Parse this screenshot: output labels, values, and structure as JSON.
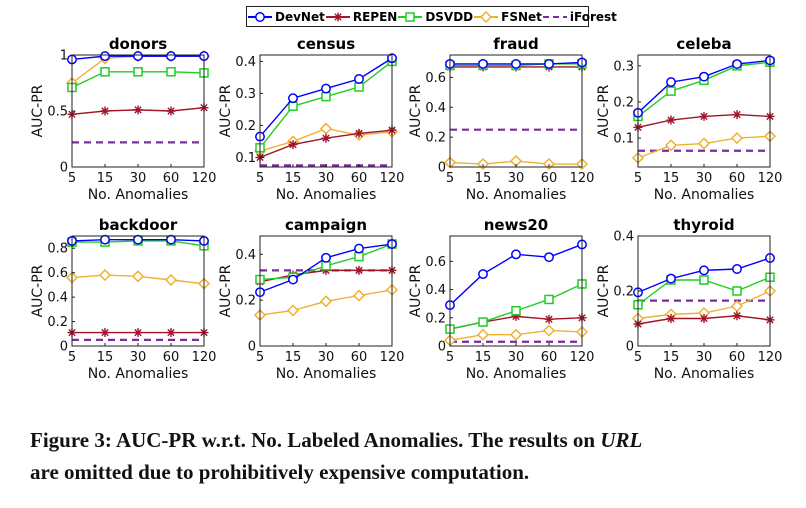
{
  "legend": [
    {
      "name": "DevNet",
      "color": "#0000ff",
      "marker": "circle",
      "dash": false
    },
    {
      "name": "REPEN",
      "color": "#a0152a",
      "marker": "star",
      "dash": false
    },
    {
      "name": "DSVDD",
      "color": "#22cc22",
      "marker": "square",
      "dash": false
    },
    {
      "name": "FSNet",
      "color": "#f0b030",
      "marker": "diamond",
      "dash": false
    },
    {
      "name": "iForest",
      "color": "#7b2aa0",
      "marker": "none",
      "dash": true
    }
  ],
  "caption": {
    "main": "Figure 3: AUC-PR w.r.t. No. Labeled Anomalies. The results on ",
    "italic": "URL",
    "line2": "are omitted due to prohibitively expensive computation."
  },
  "chart_data": [
    {
      "type": "line",
      "title": "donors",
      "xlabel": "No. Anomalies",
      "ylabel": "AUC-PR",
      "categories": [
        "5",
        "15",
        "30",
        "60",
        "120"
      ],
      "ylim": [
        0,
        1
      ],
      "yticks": [
        "0",
        "0.5",
        "1"
      ],
      "ytick_values": [
        0,
        0.5,
        1
      ],
      "series": [
        {
          "name": "DevNet",
          "values": [
            0.96,
            0.99,
            0.99,
            0.99,
            0.99
          ]
        },
        {
          "name": "REPEN",
          "values": [
            0.47,
            0.5,
            0.51,
            0.5,
            0.53
          ]
        },
        {
          "name": "DSVDD",
          "values": [
            0.71,
            0.85,
            0.85,
            0.85,
            0.84
          ]
        },
        {
          "name": "FSNet",
          "values": [
            0.75,
            0.97,
            0.99,
            0.99,
            0.99
          ]
        },
        {
          "name": "iForest",
          "values": [
            0.22,
            0.22,
            0.22,
            0.22,
            0.22
          ]
        }
      ]
    },
    {
      "type": "line",
      "title": "census",
      "xlabel": "No. Anomalies",
      "ylabel": "AUC-PR",
      "categories": [
        "5",
        "15",
        "30",
        "60",
        "120"
      ],
      "ylim": [
        0.07,
        0.42
      ],
      "yticks": [
        "0.1",
        "0.2",
        "0.3",
        "0.4"
      ],
      "ytick_values": [
        0.1,
        0.2,
        0.3,
        0.4
      ],
      "series": [
        {
          "name": "DevNet",
          "values": [
            0.165,
            0.285,
            0.315,
            0.345,
            0.41
          ]
        },
        {
          "name": "REPEN",
          "values": [
            0.1,
            0.14,
            0.16,
            0.175,
            0.185
          ]
        },
        {
          "name": "DSVDD",
          "values": [
            0.13,
            0.26,
            0.29,
            0.32,
            0.4
          ]
        },
        {
          "name": "FSNet",
          "values": [
            0.12,
            0.15,
            0.19,
            0.17,
            0.18
          ]
        },
        {
          "name": "iForest",
          "values": [
            0.075,
            0.075,
            0.075,
            0.075,
            0.075
          ]
        }
      ]
    },
    {
      "type": "line",
      "title": "fraud",
      "xlabel": "No. Anomalies",
      "ylabel": "AUC-PR",
      "categories": [
        "5",
        "15",
        "30",
        "60",
        "120"
      ],
      "ylim": [
        0,
        0.75
      ],
      "yticks": [
        "0",
        "0.2",
        "0.4",
        "0.6"
      ],
      "ytick_values": [
        0,
        0.2,
        0.4,
        0.6
      ],
      "series": [
        {
          "name": "DevNet",
          "values": [
            0.69,
            0.69,
            0.69,
            0.69,
            0.7
          ]
        },
        {
          "name": "REPEN",
          "values": [
            0.67,
            0.67,
            0.67,
            0.67,
            0.67
          ]
        },
        {
          "name": "DSVDD",
          "values": [
            0.68,
            0.68,
            0.68,
            0.69,
            0.69
          ]
        },
        {
          "name": "FSNet",
          "values": [
            0.03,
            0.02,
            0.04,
            0.02,
            0.02
          ]
        },
        {
          "name": "iForest",
          "values": [
            0.25,
            0.25,
            0.25,
            0.25,
            0.25
          ]
        }
      ]
    },
    {
      "type": "line",
      "title": "celeba",
      "xlabel": "No. Anomalies",
      "ylabel": "AUC-PR",
      "categories": [
        "5",
        "15",
        "30",
        "60",
        "120"
      ],
      "ylim": [
        0.02,
        0.33
      ],
      "yticks": [
        "0.1",
        "0.2",
        "0.3"
      ],
      "ytick_values": [
        0.1,
        0.2,
        0.3
      ],
      "series": [
        {
          "name": "DevNet",
          "values": [
            0.17,
            0.255,
            0.27,
            0.305,
            0.315
          ]
        },
        {
          "name": "REPEN",
          "values": [
            0.13,
            0.15,
            0.16,
            0.165,
            0.16
          ]
        },
        {
          "name": "DSVDD",
          "values": [
            0.16,
            0.23,
            0.26,
            0.3,
            0.31
          ]
        },
        {
          "name": "FSNet",
          "values": [
            0.045,
            0.08,
            0.085,
            0.1,
            0.105
          ]
        },
        {
          "name": "iForest",
          "values": [
            0.065,
            0.065,
            0.065,
            0.065,
            0.065
          ]
        }
      ]
    },
    {
      "type": "line",
      "title": "backdoor",
      "xlabel": "No. Anomalies",
      "ylabel": "AUC-PR",
      "categories": [
        "5",
        "15",
        "30",
        "60",
        "120"
      ],
      "ylim": [
        0,
        0.9
      ],
      "yticks": [
        "0",
        "0.2",
        "0.4",
        "0.6",
        "0.8"
      ],
      "ytick_values": [
        0,
        0.2,
        0.4,
        0.6,
        0.8
      ],
      "series": [
        {
          "name": "DevNet",
          "values": [
            0.86,
            0.87,
            0.87,
            0.87,
            0.86
          ]
        },
        {
          "name": "REPEN",
          "values": [
            0.11,
            0.11,
            0.11,
            0.11,
            0.11
          ]
        },
        {
          "name": "DSVDD",
          "values": [
            0.85,
            0.85,
            0.86,
            0.86,
            0.82
          ]
        },
        {
          "name": "FSNet",
          "values": [
            0.56,
            0.58,
            0.57,
            0.54,
            0.51
          ]
        },
        {
          "name": "iForest",
          "values": [
            0.05,
            0.05,
            0.05,
            0.05,
            0.05
          ]
        }
      ]
    },
    {
      "type": "line",
      "title": "campaign",
      "xlabel": "No. Anomalies",
      "ylabel": "AUC-PR",
      "categories": [
        "5",
        "15",
        "30",
        "60",
        "120"
      ],
      "ylim": [
        0,
        0.48
      ],
      "yticks": [
        "0",
        "0.2",
        "0.4"
      ],
      "ytick_values": [
        0,
        0.2,
        0.4
      ],
      "series": [
        {
          "name": "DevNet",
          "values": [
            0.235,
            0.29,
            0.385,
            0.425,
            0.445
          ]
        },
        {
          "name": "REPEN",
          "values": [
            0.28,
            0.31,
            0.33,
            0.33,
            0.33
          ]
        },
        {
          "name": "DSVDD",
          "values": [
            0.29,
            0.3,
            0.35,
            0.39,
            0.445
          ]
        },
        {
          "name": "FSNet",
          "values": [
            0.135,
            0.155,
            0.195,
            0.22,
            0.245
          ]
        },
        {
          "name": "iForest",
          "values": [
            0.33,
            0.33,
            0.33,
            0.33,
            0.33
          ]
        }
      ]
    },
    {
      "type": "line",
      "title": "news20",
      "xlabel": "No. Anomalies",
      "ylabel": "AUC-PR",
      "categories": [
        "5",
        "15",
        "30",
        "60",
        "120"
      ],
      "ylim": [
        0,
        0.78
      ],
      "yticks": [
        "0",
        "0.2",
        "0.4",
        "0.6"
      ],
      "ytick_values": [
        0,
        0.2,
        0.4,
        0.6
      ],
      "series": [
        {
          "name": "DevNet",
          "values": [
            0.29,
            0.51,
            0.65,
            0.63,
            0.72
          ]
        },
        {
          "name": "REPEN",
          "values": [
            0.12,
            0.17,
            0.21,
            0.19,
            0.2
          ]
        },
        {
          "name": "DSVDD",
          "values": [
            0.12,
            0.17,
            0.25,
            0.33,
            0.44
          ]
        },
        {
          "name": "FSNet",
          "values": [
            0.04,
            0.08,
            0.08,
            0.11,
            0.1
          ]
        },
        {
          "name": "iForest",
          "values": [
            0.03,
            0.03,
            0.03,
            0.03,
            0.03
          ]
        }
      ]
    },
    {
      "type": "line",
      "title": "thyroid",
      "xlabel": "No. Anomalies",
      "ylabel": "AUC-PR",
      "categories": [
        "5",
        "15",
        "30",
        "60",
        "120"
      ],
      "ylim": [
        0,
        0.4
      ],
      "yticks": [
        "0",
        "0.2",
        "0.4"
      ],
      "ytick_values": [
        0,
        0.2,
        0.4
      ],
      "series": [
        {
          "name": "DevNet",
          "values": [
            0.195,
            0.245,
            0.275,
            0.28,
            0.32
          ]
        },
        {
          "name": "REPEN",
          "values": [
            0.08,
            0.1,
            0.1,
            0.11,
            0.095
          ]
        },
        {
          "name": "DSVDD",
          "values": [
            0.15,
            0.24,
            0.24,
            0.2,
            0.25
          ]
        },
        {
          "name": "FSNet",
          "values": [
            0.1,
            0.115,
            0.12,
            0.145,
            0.2
          ]
        },
        {
          "name": "iForest",
          "values": [
            0.165,
            0.165,
            0.165,
            0.165,
            0.165
          ]
        }
      ]
    }
  ]
}
